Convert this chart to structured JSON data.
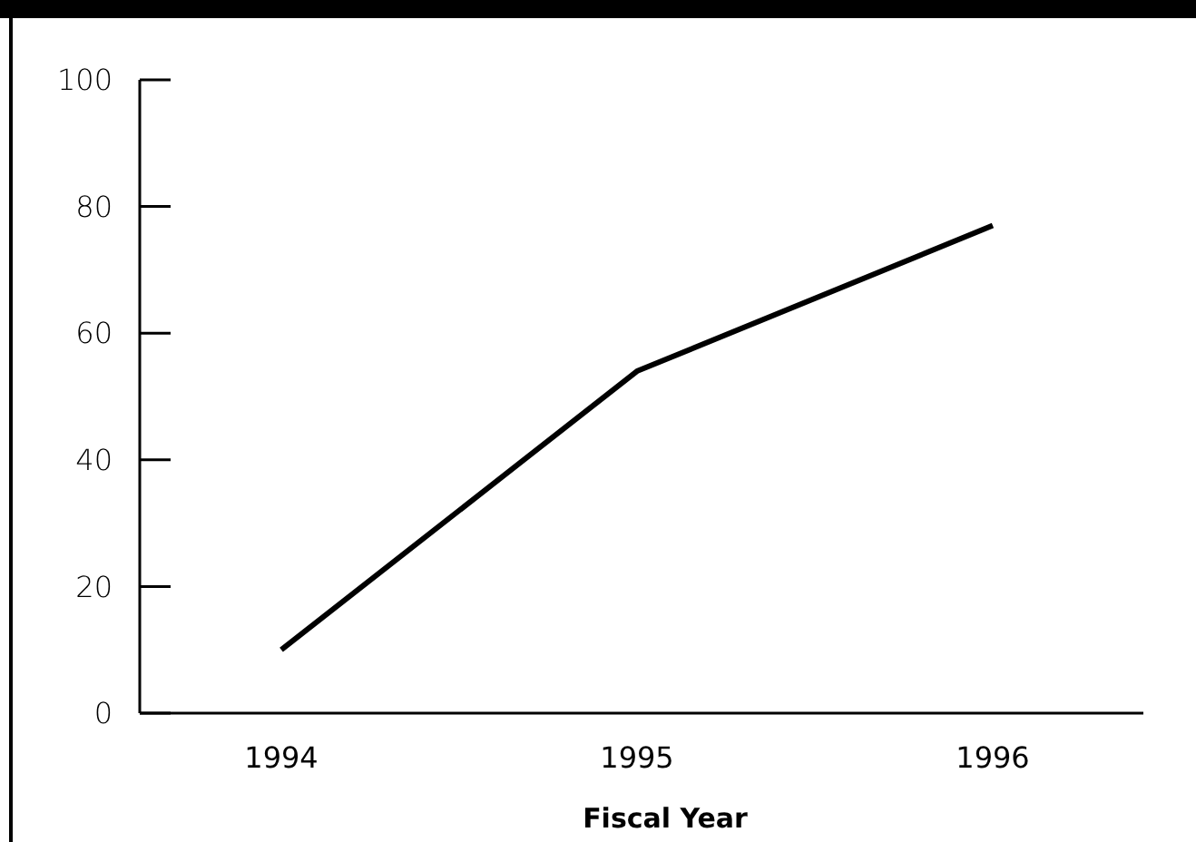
{
  "chart_data": {
    "type": "line",
    "xlabel": "Fiscal Year",
    "categories": [
      "1994",
      "1995",
      "1996"
    ],
    "series": [
      {
        "color": "#000000",
        "values": [
          10,
          54,
          77
        ]
      }
    ],
    "ylim": [
      0,
      100
    ],
    "yticks": [
      0,
      20,
      40,
      60,
      80,
      100
    ],
    "grid": false,
    "marker": "none",
    "line_style": "solid"
  }
}
